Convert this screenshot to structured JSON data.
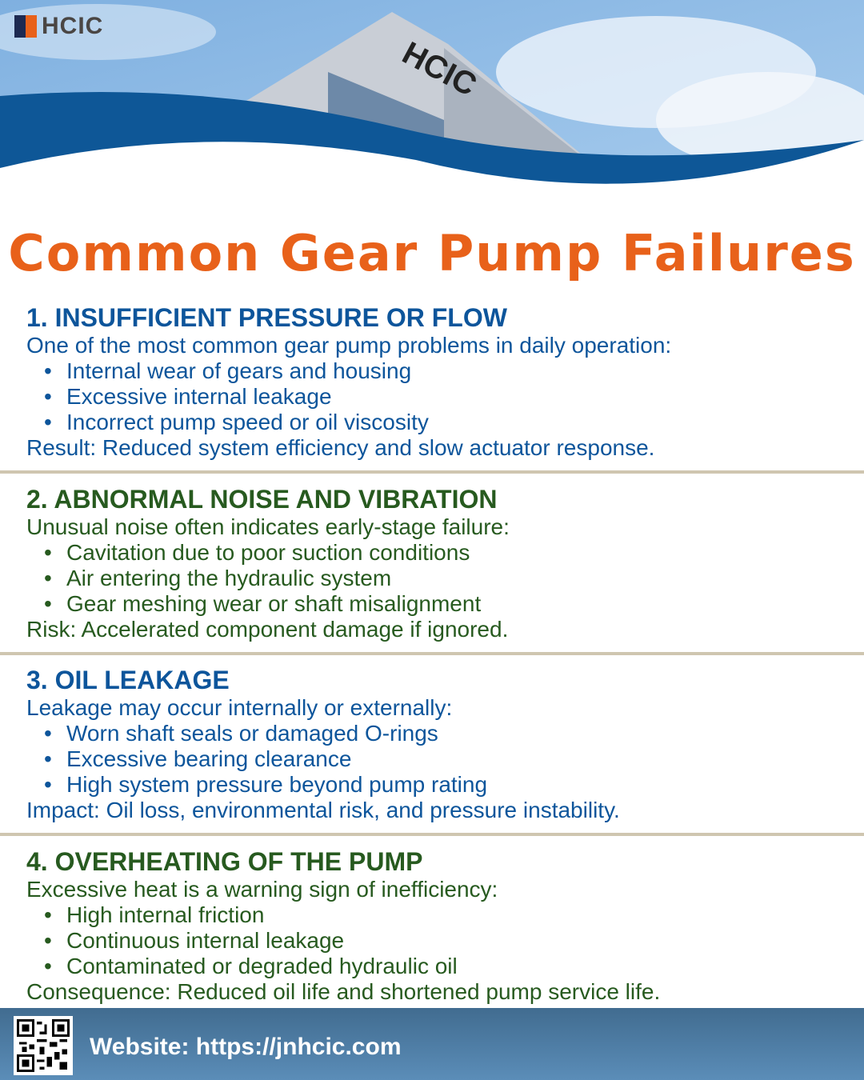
{
  "brand": {
    "logo_text": "HCIC",
    "accent": "#e8611a",
    "navy": "#1d2a52"
  },
  "title": "Common Gear Pump Failures",
  "colors": {
    "blue": "#0d559b",
    "green": "#275a1f",
    "divider": "#cfc6b0",
    "title": "#e8611a"
  },
  "sections": [
    {
      "heading": "1. INSUFFICIENT PRESSURE OR FLOW",
      "intro": "One of the most common gear pump problems in daily operation:",
      "bullets": [
        "Internal wear of gears and housing",
        "Excessive internal leakage",
        "Incorrect pump speed or oil viscosity"
      ],
      "result": "Result: Reduced system efficiency and slow actuator response."
    },
    {
      "heading": "2. ABNORMAL NOISE AND VIBRATION",
      "intro": "Unusual noise often indicates early-stage failure:",
      "bullets": [
        "Cavitation due to poor suction conditions",
        "Air entering the hydraulic system",
        "Gear meshing wear or shaft misalignment"
      ],
      "result": "Risk: Accelerated component damage if ignored."
    },
    {
      "heading": "3. OIL LEAKAGE",
      "intro": "Leakage may occur internally or externally:",
      "bullets": [
        "Worn shaft seals or damaged O-rings",
        "Excessive bearing clearance",
        "High system pressure beyond pump rating"
      ],
      "result": "Impact: Oil loss, environmental risk, and pressure instability."
    },
    {
      "heading": "4. OVERHEATING OF THE PUMP",
      "intro": "Excessive heat is a warning sign of inefficiency:",
      "bullets": [
        "High internal friction",
        "Continuous internal leakage",
        "Contaminated or degraded hydraulic oil"
      ],
      "result": "Consequence: Reduced oil life and shortened pump service life."
    }
  ],
  "footer": {
    "website": "Website: https://jnhcic.com",
    "qr_icon": "qr-code-icon"
  }
}
